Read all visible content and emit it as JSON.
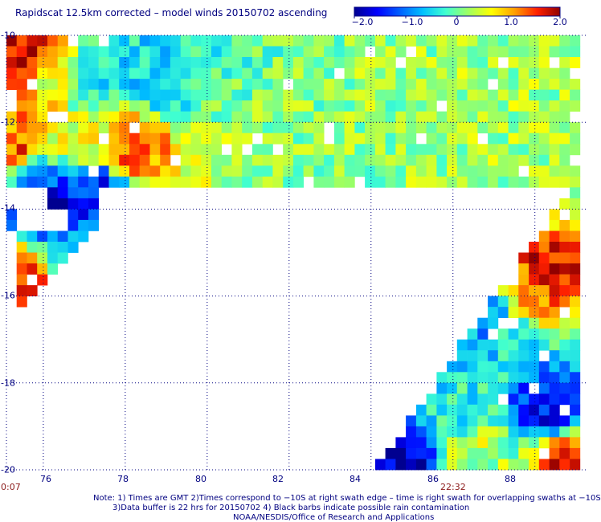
{
  "title": "Rapidscat 12.5km corrected – model winds 20150702 ascending",
  "colorbar": {
    "labels": [
      "−2.0",
      "−1.0",
      "0",
      "1.0",
      "2.0"
    ],
    "values": [
      -2.0,
      -1.0,
      0,
      1.0,
      2.0
    ]
  },
  "axes": {
    "y_ticks": [
      "-10",
      "-12",
      "-14",
      "-16",
      "-18",
      "-20"
    ],
    "x_ticks": [
      "76",
      "78",
      "80",
      "82",
      "84",
      "86",
      "88"
    ]
  },
  "times": [
    {
      "text": "0:07",
      "color": "#8b1a1a"
    },
    {
      "text": "22:32",
      "color": "#8b1a1a"
    }
  ],
  "notes": {
    "line1": "Note: 1) Times are GMT 2)Times correspond to −10S at right swath edge – time is right swath for overlapping swaths at −10S",
    "line2": "3)Data buffer is 22 hrs for 20150702 4) Black barbs indicate possible rain contamination",
    "line3": "NOAA/NESDIS/Office of Research and Applications"
  },
  "chart_data": {
    "type": "heatmap",
    "title": "Rapidscat 12.5km corrected – model winds 20150702 ascending",
    "xlim": [
      75.1,
      89.3
    ],
    "ylim": [
      -20,
      -10
    ],
    "x_ticks": [
      76,
      78,
      80,
      82,
      84,
      86,
      88
    ],
    "y_ticks": [
      -10,
      -12,
      -14,
      -16,
      -18,
      -20
    ],
    "grid": true,
    "colorbar_range": [
      -2.0,
      2.0
    ],
    "colormap": [
      "#000090",
      "#0000ff",
      "#0060ff",
      "#00c0ff",
      "#40ffd0",
      "#a0ff60",
      "#ffff00",
      "#ffa000",
      "#ff2000",
      "#900000"
    ],
    "swaths": [
      {
        "region": "west",
        "lat_range": [
          -10,
          -16.6
        ],
        "lon_range": [
          75.1,
          80.0
        ],
        "pattern": [
          {
            "lat": -10.5,
            "lon": 75.3,
            "value": 1.8
          },
          {
            "lat": -11.0,
            "lon": 75.3,
            "value": 1.6
          },
          {
            "lat": -11.0,
            "lon": 76.0,
            "value": 0.4
          },
          {
            "lat": -11.0,
            "lon": 77.0,
            "value": -0.4
          },
          {
            "lat": -10.8,
            "lon": 78.5,
            "value": -0.5
          },
          {
            "lat": -11.7,
            "lon": 75.5,
            "value": 1.2
          },
          {
            "lat": -12.2,
            "lon": 76.6,
            "value": 0.6
          },
          {
            "lat": -12.5,
            "lon": 78.0,
            "value": 1.3
          },
          {
            "lat": -12.6,
            "lon": 75.4,
            "value": 1.5
          },
          {
            "lat": -13.0,
            "lon": 75.6,
            "value": -1.2
          },
          {
            "lat": -13.8,
            "lon": 76.0,
            "value": -1.9
          },
          {
            "lat": -13.5,
            "lon": 77.2,
            "value": -1.4
          },
          {
            "lat": -15.6,
            "lon": 75.6,
            "value": 1.7
          },
          {
            "lat": -16.1,
            "lon": 75.3,
            "value": 1.9
          },
          {
            "lat": -15.3,
            "lon": 76.5,
            "value": -0.6
          }
        ]
      },
      {
        "region": "east",
        "lat_range": [
          -12.6,
          -20
        ],
        "lon_range": [
          83.9,
          89.3
        ],
        "pattern": [
          {
            "lat": -13.5,
            "lon": 89.0,
            "value": 0.4
          },
          {
            "lat": -15.3,
            "lon": 88.2,
            "value": 1.7
          },
          {
            "lat": -15.8,
            "lon": 87.9,
            "value": 1.2
          },
          {
            "lat": -16.5,
            "lon": 86.6,
            "value": -0.8
          },
          {
            "lat": -17.0,
            "lon": 87.5,
            "value": -0.3
          },
          {
            "lat": -18.3,
            "lon": 88.2,
            "value": -1.5
          },
          {
            "lat": -18.8,
            "lon": 86.1,
            "value": -0.4
          },
          {
            "lat": -19.3,
            "lon": 86.3,
            "value": 0.4
          },
          {
            "lat": -19.6,
            "lon": 84.6,
            "value": -1.8
          },
          {
            "lat": -19.8,
            "lon": 88.8,
            "value": 1.6
          }
        ]
      }
    ]
  }
}
